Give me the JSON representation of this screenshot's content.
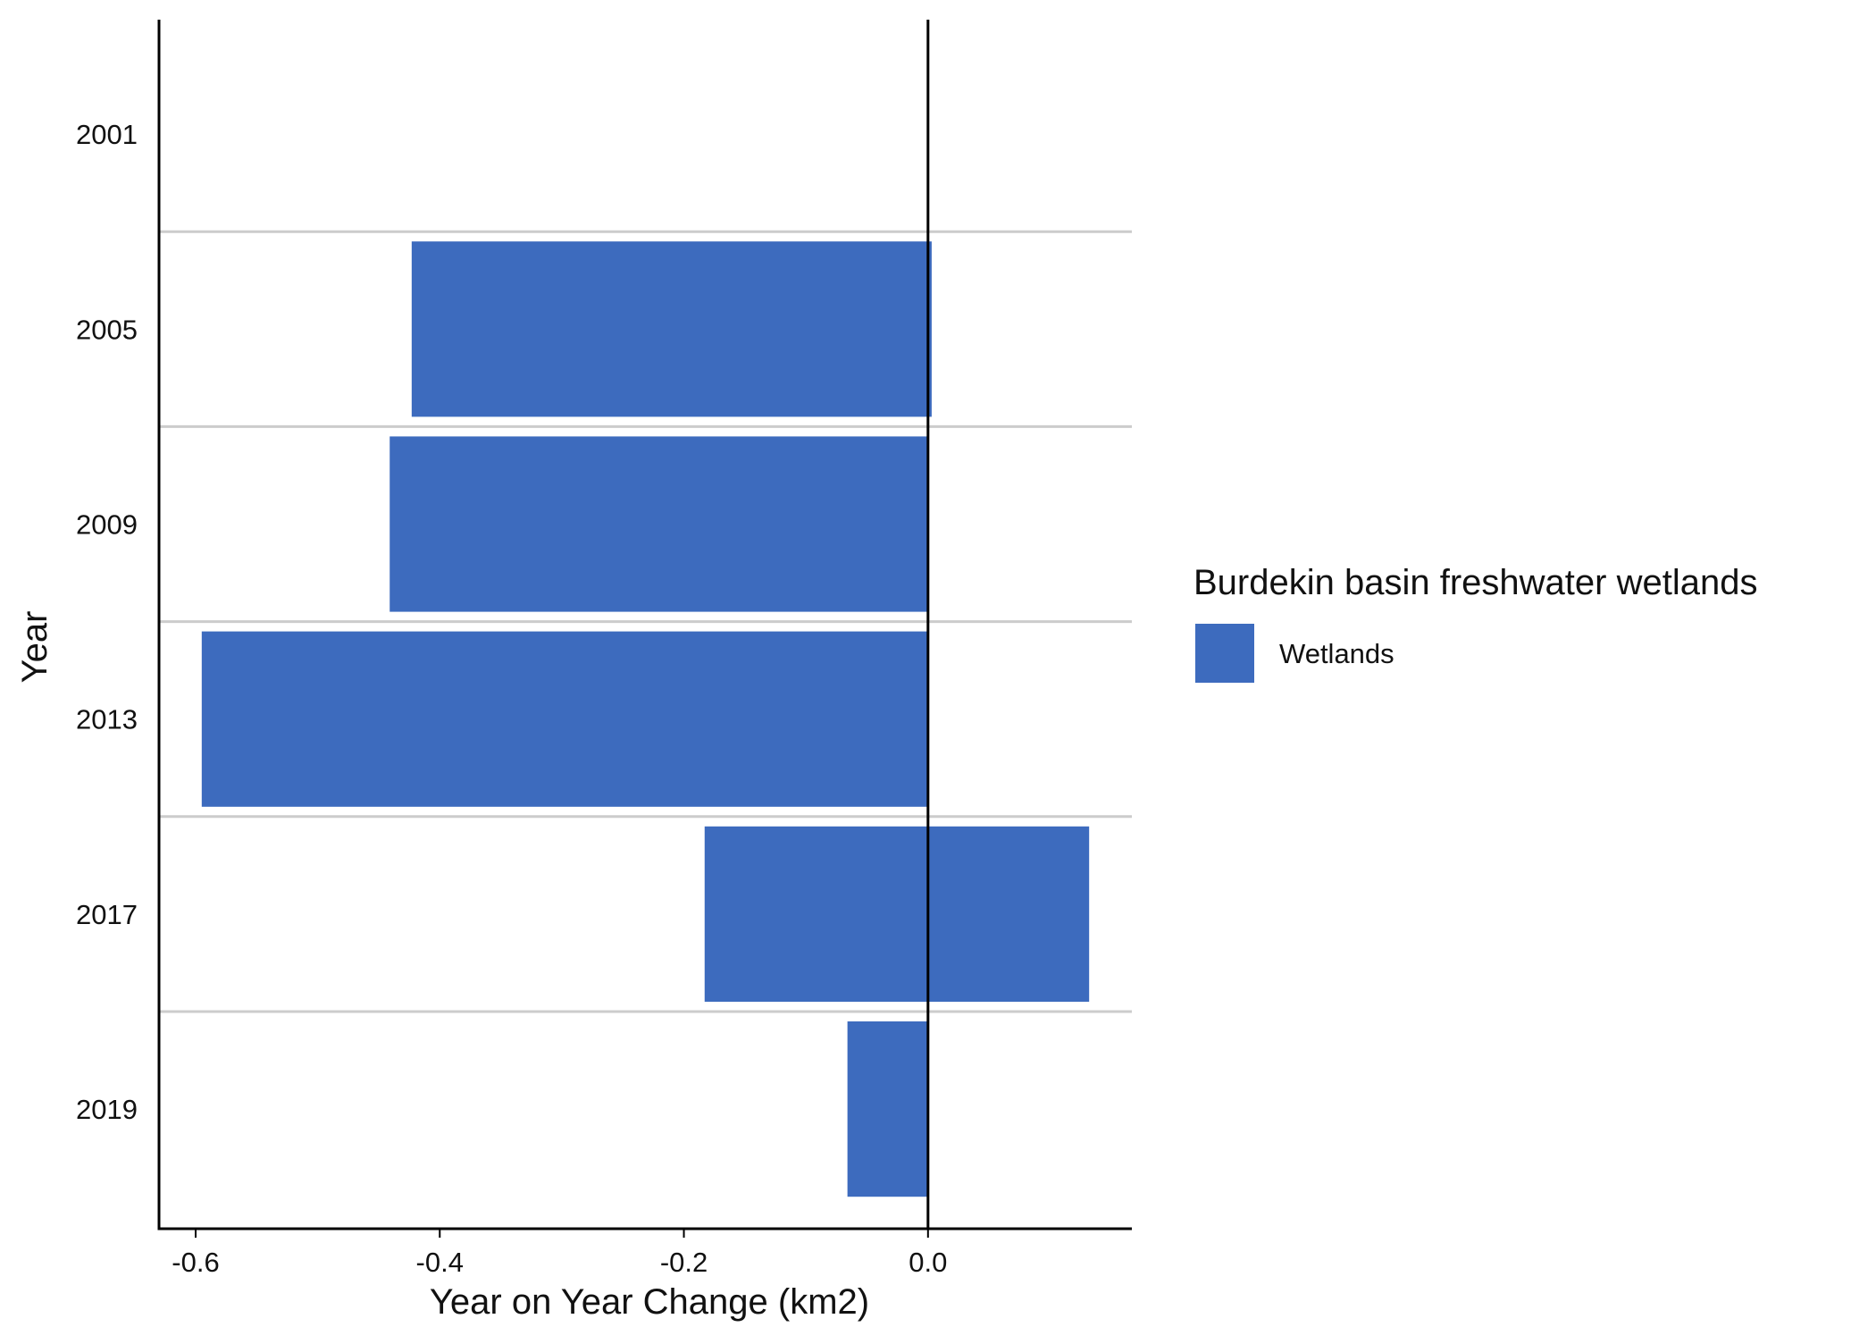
{
  "chart_data": {
    "type": "bar",
    "orientation": "horizontal",
    "categories": [
      "2001",
      "2005",
      "2009",
      "2013",
      "2017",
      "2019"
    ],
    "series": [
      {
        "name": "Wetlands",
        "color": "#3D6BBE",
        "bars": [
          {
            "category": "2005",
            "start": -0.423,
            "end": 0.003
          },
          {
            "category": "2009",
            "start": -0.441,
            "end": 0.0
          },
          {
            "category": "2013",
            "start": -0.595,
            "end": 0.0
          },
          {
            "category": "2017",
            "start": -0.183,
            "end": 0.132
          },
          {
            "category": "2019",
            "start": -0.066,
            "end": 0.0
          }
        ]
      }
    ],
    "xlabel": "Year on Year Change (km2)",
    "ylabel": "Year",
    "xlim": [
      -0.63,
      0.167
    ],
    "xticks": [
      -0.6,
      -0.4,
      -0.2,
      0.0
    ],
    "xtick_labels": [
      "-0.6",
      "-0.4",
      "-0.2",
      "0.0"
    ],
    "grid": "horizontal lines between year categories",
    "zero_line": true,
    "legend": {
      "title": "Burdekin basin freshwater wetlands",
      "entries": [
        "Wetlands"
      ],
      "placement": "right"
    }
  },
  "colors": {
    "bar": "#3D6BBE",
    "grid": "#cccccc",
    "axis": "#000000",
    "background": "#ffffff"
  }
}
